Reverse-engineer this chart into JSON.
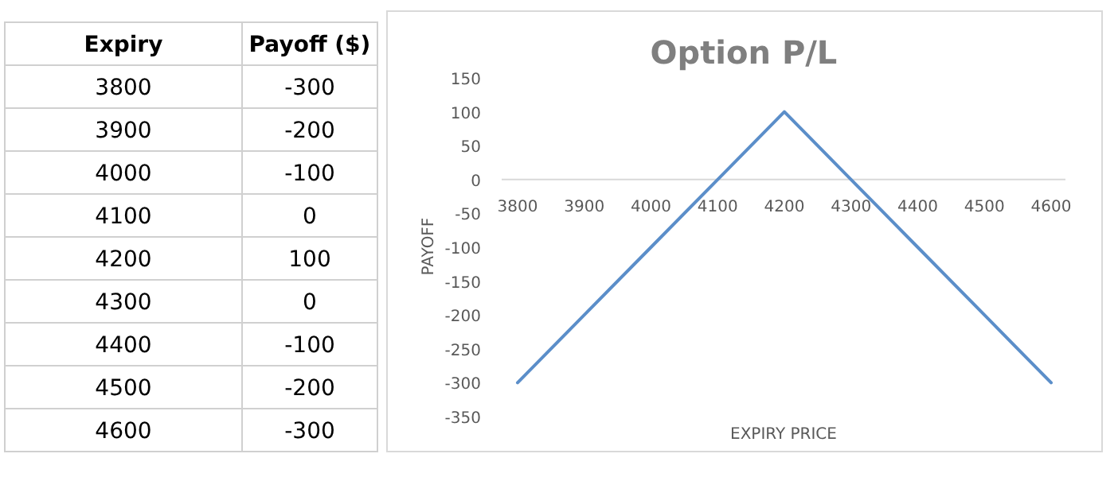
{
  "chart_data": {
    "type": "line",
    "title": "Option P/L",
    "xlabel": "EXPIRY PRICE",
    "ylabel": "PAYOFF",
    "categories": [
      "3800",
      "3900",
      "4000",
      "4100",
      "4200",
      "4300",
      "4400",
      "4500",
      "4600"
    ],
    "series": [
      {
        "color": "#5b8ec9",
        "values": [
          -300,
          -200,
          -100,
          0,
          100,
          0,
          -100,
          -200,
          -300
        ]
      }
    ],
    "ylim": [
      -350,
      150
    ],
    "yticks": [
      -350,
      -300,
      -250,
      -200,
      -150,
      -100,
      -50,
      0,
      50,
      100,
      150
    ],
    "annotations": [
      "Expiry",
      "Payoff ($)",
      "-300",
      "-200",
      "-100",
      "0",
      "100",
      "0",
      "-100",
      "-200",
      "-300"
    ],
    "marker": "none",
    "line_style": "solid",
    "grid": false
  }
}
